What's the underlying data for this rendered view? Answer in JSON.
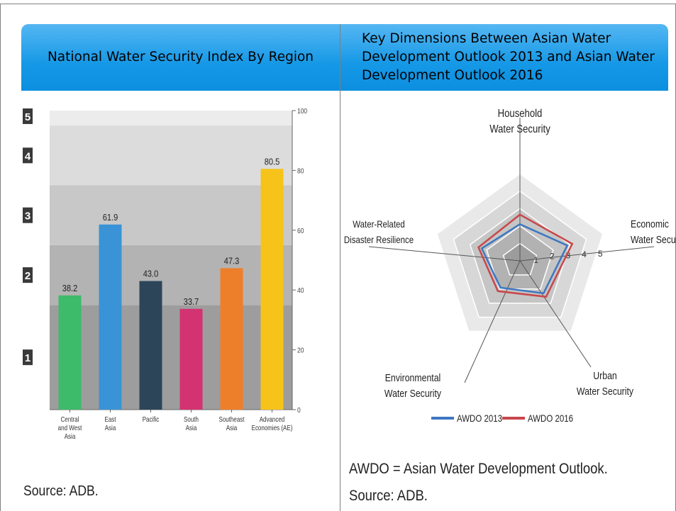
{
  "header": {
    "left_title": "National Water Security Index By Region",
    "right_title": "Key Dimensions Between Asian Water Development Outlook 2013 and Asian Water Development Outlook 2016"
  },
  "chart_data": [
    {
      "type": "bar",
      "categories": [
        [
          "Central",
          "and West",
          "Asia"
        ],
        [
          "East",
          "Asia"
        ],
        [
          "Pacific"
        ],
        [
          "South",
          "Asia"
        ],
        [
          "Southeast",
          "Asia"
        ],
        [
          "Advanced",
          "Economies (AE)"
        ]
      ],
      "values": [
        38.2,
        61.9,
        43.0,
        33.7,
        47.3,
        80.5
      ],
      "value_labels": [
        "38.2",
        "61.9",
        "43.0",
        "33.7",
        "47.3",
        "80.5"
      ],
      "bar_colors": [
        "#3dba6a",
        "#3a93d6",
        "#2c4559",
        "#d43371",
        "#ee7f2a",
        "#f6c31a"
      ],
      "ylim": [
        0,
        100
      ],
      "y_ticks": [
        "0",
        "20",
        "40",
        "60",
        "80",
        "100"
      ],
      "bands": [
        {
          "label": "1",
          "from": 0,
          "to": 35,
          "color": "#9d9d9d"
        },
        {
          "label": "2",
          "from": 35,
          "to": 55,
          "color": "#b3b3b3"
        },
        {
          "label": "3",
          "from": 55,
          "to": 75,
          "color": "#c8c8c8"
        },
        {
          "label": "4",
          "from": 75,
          "to": 95,
          "color": "#dcdcdc"
        },
        {
          "label": "5",
          "from": 95,
          "to": 100,
          "color": "#ececec"
        }
      ],
      "source": "Source: ADB."
    },
    {
      "type": "radar",
      "axes": [
        [
          "Household",
          "Water Security"
        ],
        [
          "Economic",
          "Water Security"
        ],
        [
          "Urban",
          "Water Security"
        ],
        [
          "Environmental",
          "Water Security"
        ],
        [
          "Water-Related",
          "Disaster Resilience"
        ]
      ],
      "scale_labels": [
        "1",
        "2",
        "3",
        "4",
        "5"
      ],
      "rmax": 5,
      "series": [
        {
          "name": "AWDO 2013",
          "color": "#3e77c0",
          "values": [
            2.1,
            2.85,
            2.3,
            1.9,
            2.3
          ]
        },
        {
          "name": "AWDO 2016",
          "color": "#c8474b",
          "values": [
            2.65,
            3.15,
            2.55,
            2.15,
            2.5
          ]
        }
      ],
      "footnote": "AWDO = Asian Water Development Outlook.",
      "source": "Source: ADB."
    }
  ]
}
